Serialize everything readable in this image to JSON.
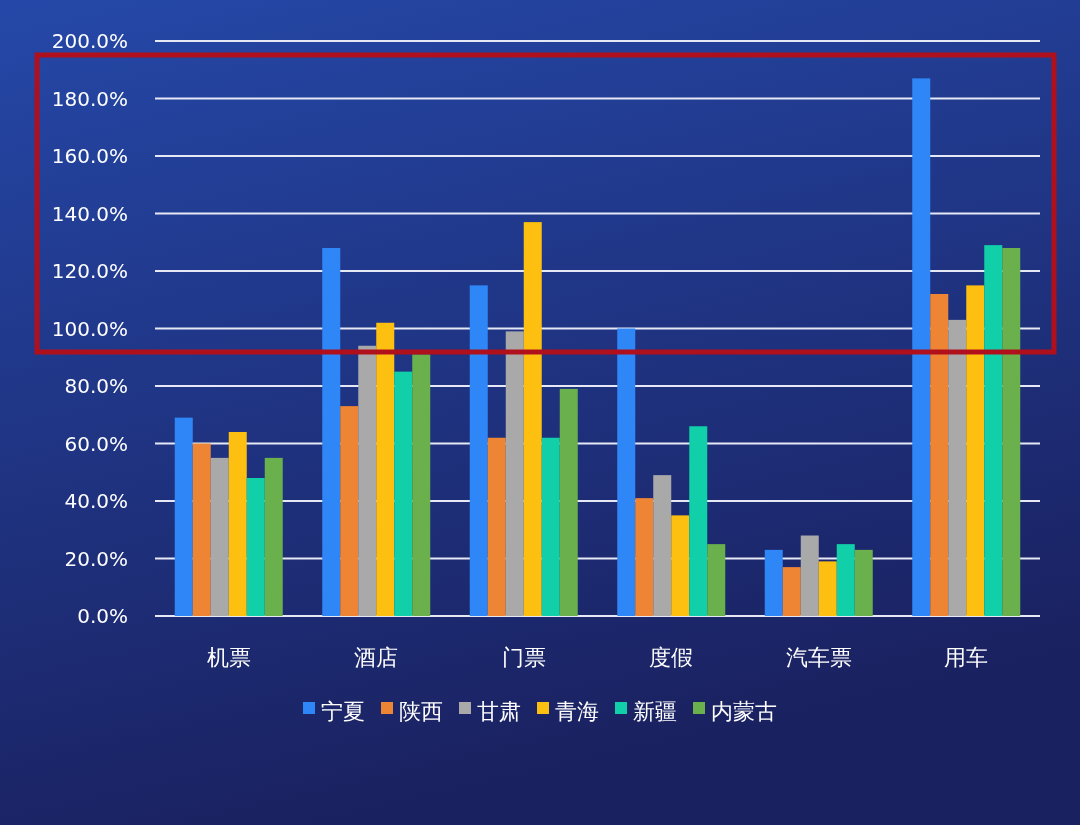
{
  "chart_data": {
    "type": "bar",
    "categories": [
      "机票",
      "酒店",
      "门票",
      "度假",
      "汽车票",
      "用车"
    ],
    "series": [
      {
        "name": "宁夏",
        "color": "#2f86f6",
        "values": [
          69,
          128,
          115,
          100,
          23,
          187
        ]
      },
      {
        "name": "陕西",
        "color": "#ee8535",
        "values": [
          60,
          73,
          62,
          41,
          17,
          112
        ]
      },
      {
        "name": "甘肃",
        "color": "#a9a9a9",
        "values": [
          55,
          94,
          99,
          49,
          28,
          103
        ]
      },
      {
        "name": "青海",
        "color": "#fdc010",
        "values": [
          64,
          102,
          137,
          35,
          19,
          115
        ]
      },
      {
        "name": "新疆",
        "color": "#11cfa8",
        "values": [
          48,
          85,
          62,
          66,
          25,
          129
        ]
      },
      {
        "name": "内蒙古",
        "color": "#6ab04c",
        "values": [
          55,
          91,
          79,
          25,
          23,
          128
        ]
      }
    ],
    "ylim": [
      0,
      200
    ],
    "yticks": [
      {
        "value": 0,
        "label": "0.0%"
      },
      {
        "value": 20,
        "label": "20.0%"
      },
      {
        "value": 40,
        "label": "40.0%"
      },
      {
        "value": 60,
        "label": "60.0%"
      },
      {
        "value": 80,
        "label": "80.0%"
      },
      {
        "value": 100,
        "label": "100.0%"
      },
      {
        "value": 120,
        "label": "120.0%"
      },
      {
        "value": 140,
        "label": "140.0%"
      },
      {
        "value": 160,
        "label": "160.0%"
      },
      {
        "value": 180,
        "label": "180.0%"
      },
      {
        "value": 200,
        "label": "200.0%"
      }
    ],
    "grid": "y",
    "legend": "bottom"
  }
}
